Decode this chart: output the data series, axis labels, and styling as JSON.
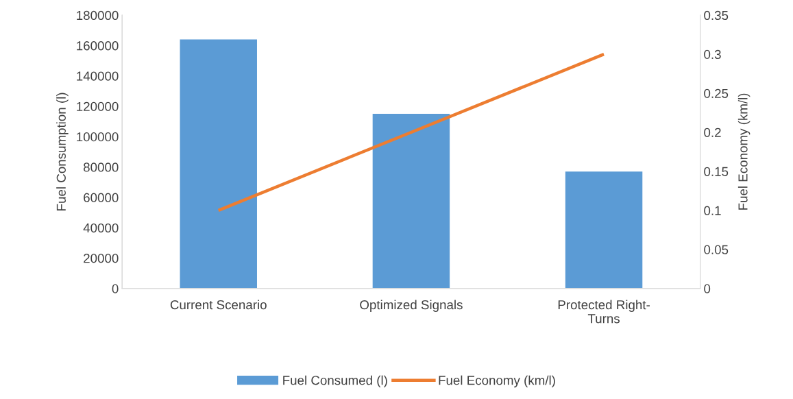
{
  "chart_data": {
    "type": "bar",
    "categories": [
      "Current Scenario",
      "Optimized Signals",
      "Protected Right-Turns"
    ],
    "ylabel": "Fuel Consumption (l)",
    "y2label": "Fuel Economy (km/l)",
    "ylim": [
      0,
      180000
    ],
    "yticks": [
      0,
      20000,
      40000,
      60000,
      80000,
      100000,
      120000,
      140000,
      160000,
      180000
    ],
    "y2lim": [
      0,
      0.35
    ],
    "y2ticks": [
      0,
      0.05,
      0.1,
      0.15,
      0.2,
      0.25,
      0.3,
      0.35
    ],
    "grid": false,
    "legend": "bottom",
    "series": [
      {
        "name": "Fuel Consumed (l)",
        "color": "#5b9bd5",
        "values": [
          164000,
          115000,
          77000
        ]
      },
      {
        "name": "Fuel Economy (km/l)",
        "type": "line",
        "axis": "y2",
        "color": "#ed7d31",
        "values": [
          0.1,
          0.2,
          0.3
        ]
      }
    ]
  }
}
